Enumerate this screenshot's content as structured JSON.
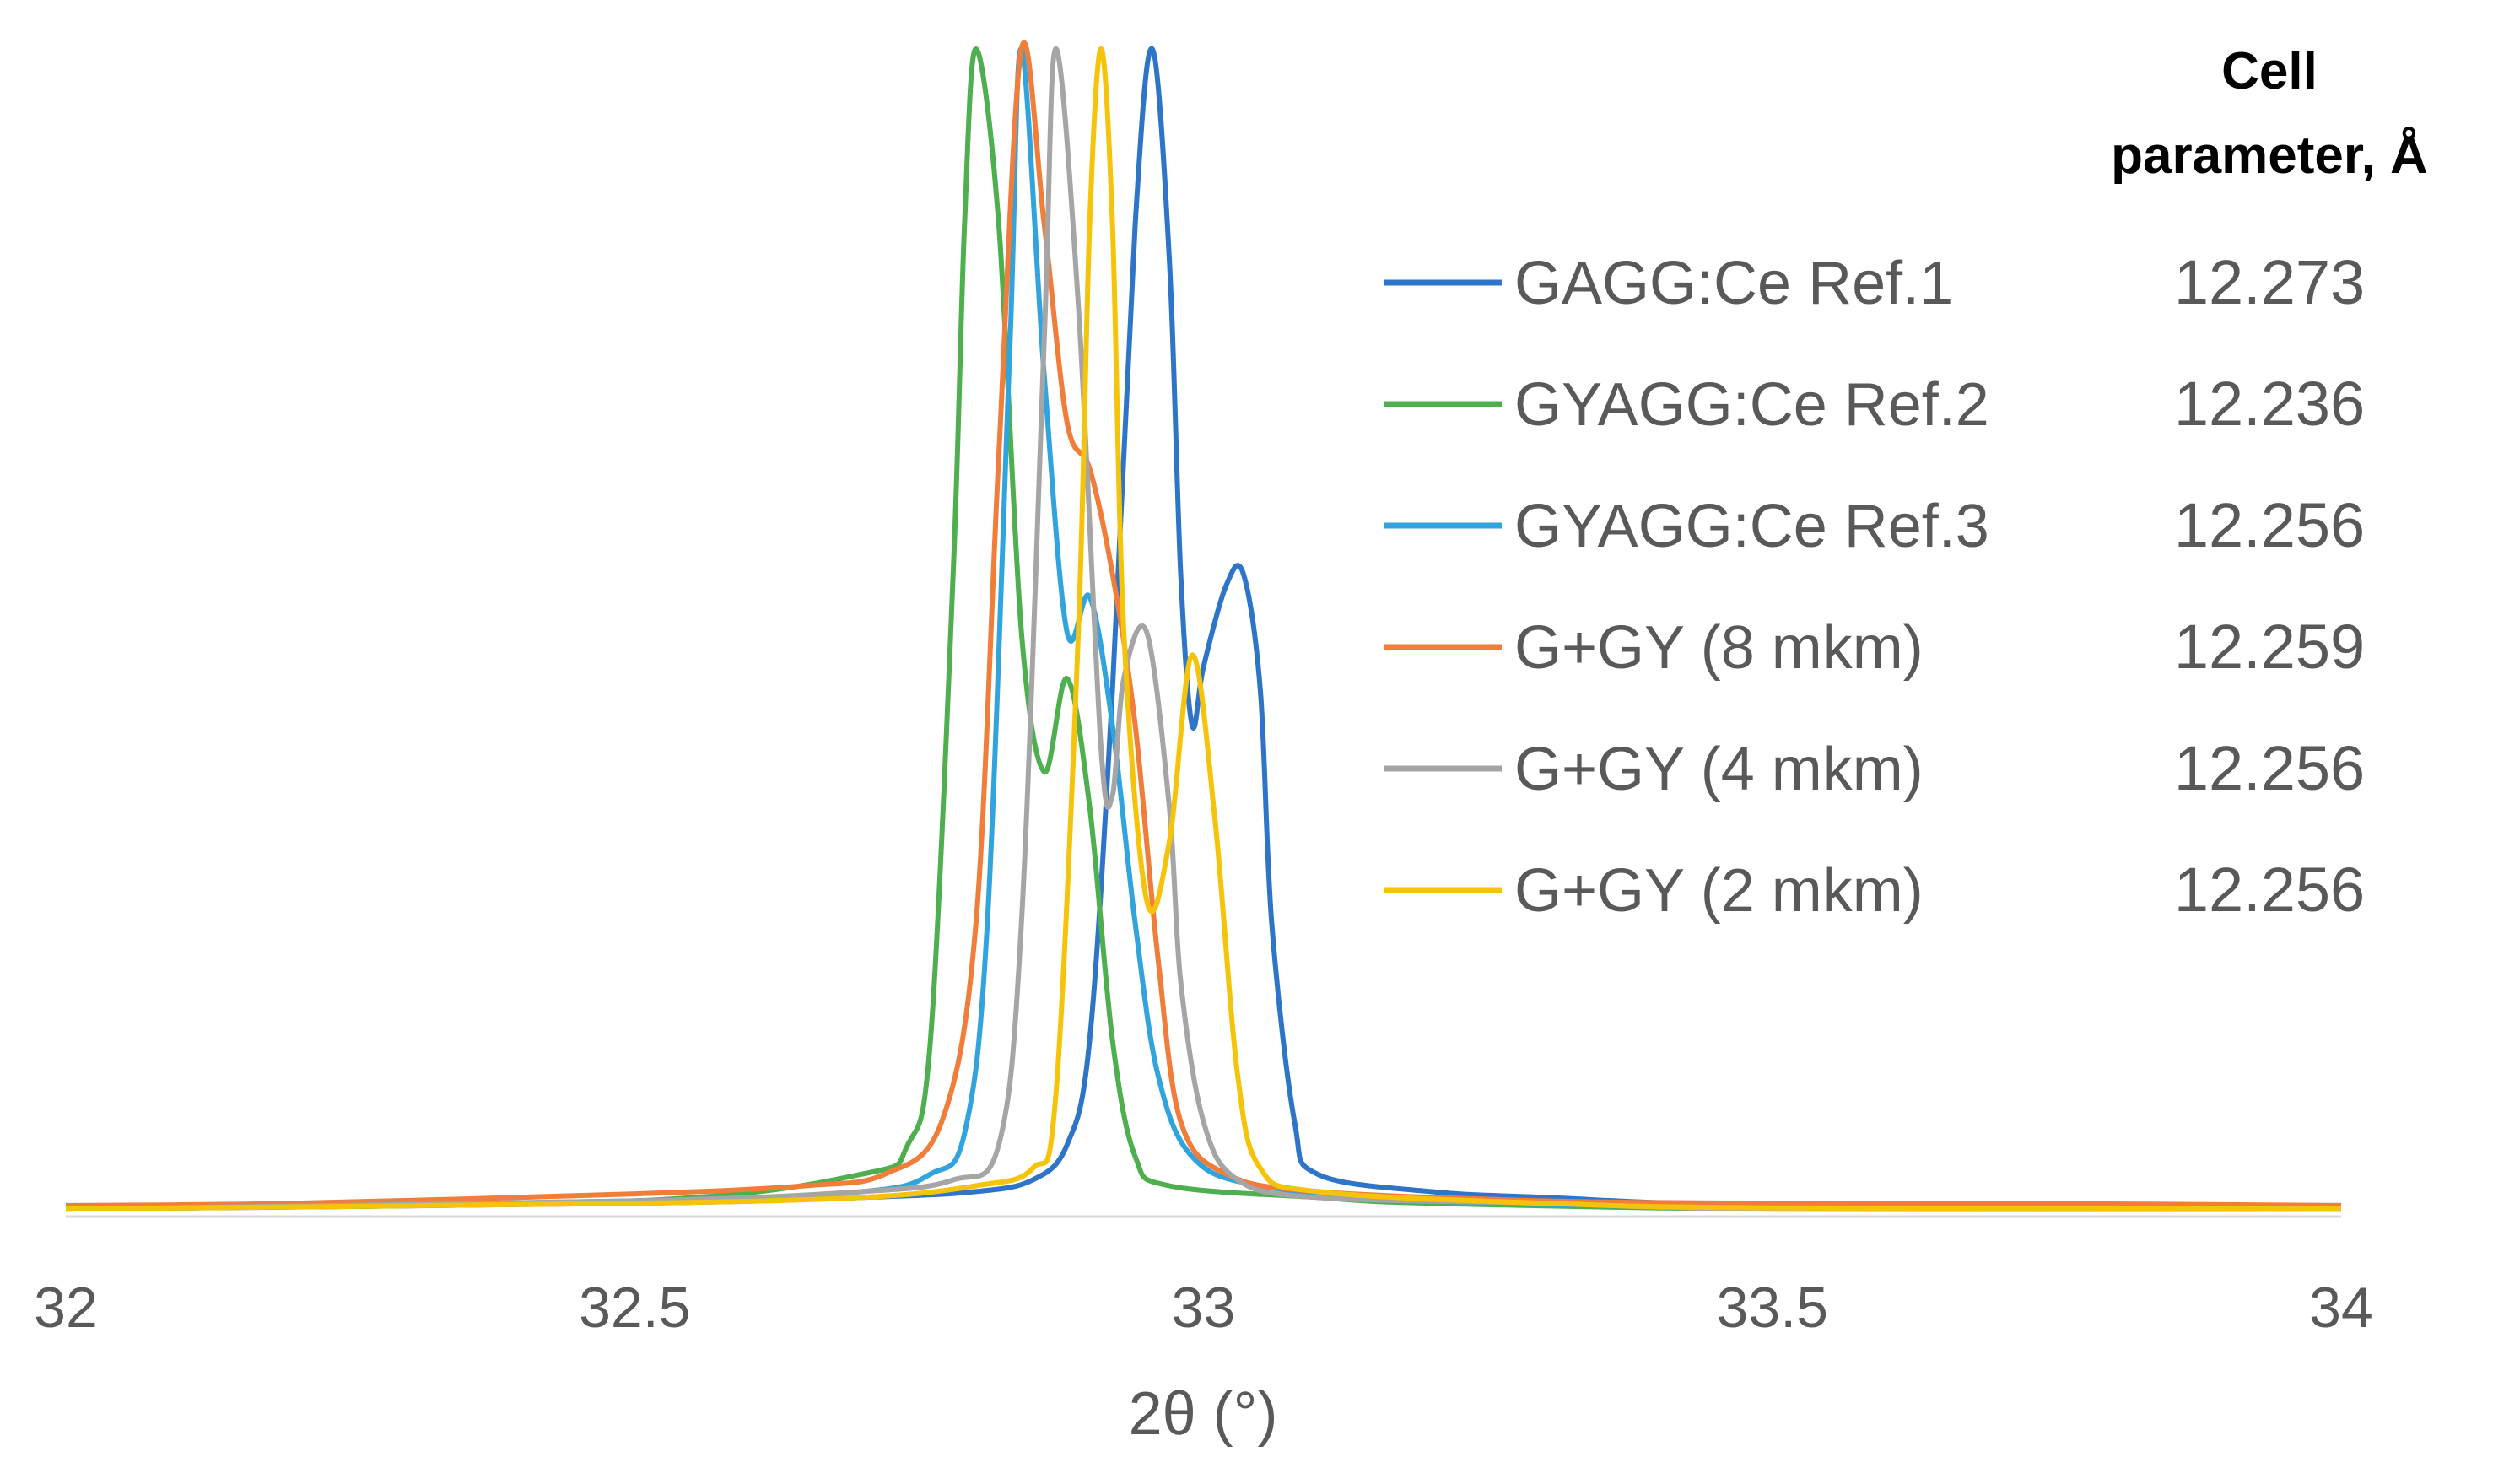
{
  "chart_data": {
    "type": "line",
    "title": "",
    "xlabel": "2θ (°)",
    "ylabel": "",
    "xlim": [
      32,
      34
    ],
    "ylim": [
      0,
      1
    ],
    "grid": false,
    "legend_position": "right",
    "legend_value_header": "Cell parameter, Å",
    "legend_value_header_lines": [
      "Cell",
      "parameter, Å"
    ],
    "x_ticks": [
      32,
      32.5,
      33,
      33.5,
      34
    ],
    "x_tick_labels": [
      "32",
      "32.5",
      "33",
      "33.5",
      "34"
    ],
    "series": [
      {
        "name": "GAGG:Ce Ref.1",
        "cell_parameter": "12.273",
        "color": "#2E75C9",
        "points": [
          [
            32,
            0.005
          ],
          [
            32.5,
            0.01
          ],
          [
            32.7,
            0.015
          ],
          [
            32.8,
            0.02
          ],
          [
            32.85,
            0.03
          ],
          [
            32.88,
            0.06
          ],
          [
            32.9,
            0.15
          ],
          [
            32.92,
            0.45
          ],
          [
            32.94,
            0.85
          ],
          [
            32.955,
            1.0
          ],
          [
            32.97,
            0.82
          ],
          [
            32.98,
            0.55
          ],
          [
            32.99,
            0.42
          ],
          [
            33.0,
            0.47
          ],
          [
            33.02,
            0.54
          ],
          [
            33.035,
            0.55
          ],
          [
            33.05,
            0.45
          ],
          [
            33.06,
            0.25
          ],
          [
            33.08,
            0.08
          ],
          [
            33.1,
            0.035
          ],
          [
            33.2,
            0.02
          ],
          [
            33.3,
            0.015
          ],
          [
            33.5,
            0.008
          ],
          [
            34,
            0.005
          ]
        ]
      },
      {
        "name": "GYAGG:Ce Ref.2",
        "cell_parameter": "12.236",
        "color": "#4EAF4E",
        "points": [
          [
            32,
            0.005
          ],
          [
            32.5,
            0.012
          ],
          [
            32.7,
            0.035
          ],
          [
            32.74,
            0.06
          ],
          [
            32.76,
            0.15
          ],
          [
            32.78,
            0.55
          ],
          [
            32.79,
            0.85
          ],
          [
            32.8,
            1.0
          ],
          [
            32.82,
            0.85
          ],
          [
            32.84,
            0.5
          ],
          [
            32.86,
            0.38
          ],
          [
            32.88,
            0.46
          ],
          [
            32.9,
            0.35
          ],
          [
            32.92,
            0.15
          ],
          [
            32.94,
            0.05
          ],
          [
            32.97,
            0.025
          ],
          [
            33.1,
            0.015
          ],
          [
            33.2,
            0.01
          ],
          [
            33.5,
            0.005
          ],
          [
            34,
            0.005
          ]
        ]
      },
      {
        "name": "GYAGG:Ce Ref.3",
        "cell_parameter": "12.256",
        "color": "#31A4DE",
        "points": [
          [
            32,
            0.005
          ],
          [
            32.5,
            0.012
          ],
          [
            32.7,
            0.02
          ],
          [
            32.76,
            0.035
          ],
          [
            32.79,
            0.07
          ],
          [
            32.81,
            0.25
          ],
          [
            32.83,
            0.75
          ],
          [
            32.84,
            1.0
          ],
          [
            32.86,
            0.72
          ],
          [
            32.88,
            0.5
          ],
          [
            32.9,
            0.53
          ],
          [
            32.92,
            0.42
          ],
          [
            32.94,
            0.25
          ],
          [
            32.96,
            0.12
          ],
          [
            32.99,
            0.05
          ],
          [
            33.05,
            0.025
          ],
          [
            33.2,
            0.012
          ],
          [
            33.5,
            0.006
          ],
          [
            34,
            0.005
          ]
        ]
      },
      {
        "name": "G+GY (8 mkm)",
        "cell_parameter": "12.259",
        "color": "#F07D3A",
        "points": [
          [
            32,
            0.008
          ],
          [
            32.2,
            0.01
          ],
          [
            32.5,
            0.018
          ],
          [
            32.65,
            0.025
          ],
          [
            32.72,
            0.035
          ],
          [
            32.77,
            0.08
          ],
          [
            32.8,
            0.25
          ],
          [
            32.82,
            0.65
          ],
          [
            32.84,
            1.0
          ],
          [
            32.86,
            0.85
          ],
          [
            32.88,
            0.68
          ],
          [
            32.9,
            0.64
          ],
          [
            32.92,
            0.55
          ],
          [
            32.94,
            0.42
          ],
          [
            32.96,
            0.22
          ],
          [
            32.98,
            0.08
          ],
          [
            33.02,
            0.035
          ],
          [
            33.1,
            0.02
          ],
          [
            33.3,
            0.012
          ],
          [
            33.5,
            0.01
          ],
          [
            33.7,
            0.01
          ],
          [
            34,
            0.008
          ]
        ]
      },
      {
        "name": "G+GY (4 mkm)",
        "cell_parameter": "12.256",
        "color": "#A5A5A5",
        "points": [
          [
            32,
            0.005
          ],
          [
            32.5,
            0.012
          ],
          [
            32.7,
            0.02
          ],
          [
            32.78,
            0.03
          ],
          [
            32.82,
            0.06
          ],
          [
            32.84,
            0.25
          ],
          [
            32.86,
            0.75
          ],
          [
            32.87,
            1.0
          ],
          [
            32.89,
            0.78
          ],
          [
            32.91,
            0.4
          ],
          [
            32.92,
            0.36
          ],
          [
            32.93,
            0.46
          ],
          [
            32.95,
            0.5
          ],
          [
            32.97,
            0.35
          ],
          [
            32.98,
            0.2
          ],
          [
            33.0,
            0.08
          ],
          [
            33.03,
            0.03
          ],
          [
            33.1,
            0.015
          ],
          [
            33.3,
            0.01
          ],
          [
            33.5,
            0.005
          ],
          [
            34,
            0.005
          ]
        ]
      },
      {
        "name": "G+GY (2 mkm)",
        "cell_parameter": "12.256",
        "color": "#F5C40A",
        "points": [
          [
            32,
            0.005
          ],
          [
            32.5,
            0.01
          ],
          [
            32.7,
            0.015
          ],
          [
            32.8,
            0.025
          ],
          [
            32.85,
            0.04
          ],
          [
            32.87,
            0.1
          ],
          [
            32.89,
            0.5
          ],
          [
            32.9,
            0.85
          ],
          [
            32.91,
            1.0
          ],
          [
            32.92,
            0.85
          ],
          [
            32.93,
            0.5
          ],
          [
            32.95,
            0.27
          ],
          [
            32.97,
            0.32
          ],
          [
            32.99,
            0.48
          ],
          [
            33.01,
            0.34
          ],
          [
            33.03,
            0.12
          ],
          [
            33.05,
            0.04
          ],
          [
            33.1,
            0.02
          ],
          [
            33.3,
            0.01
          ],
          [
            33.5,
            0.006
          ],
          [
            34,
            0.005
          ]
        ]
      }
    ]
  }
}
